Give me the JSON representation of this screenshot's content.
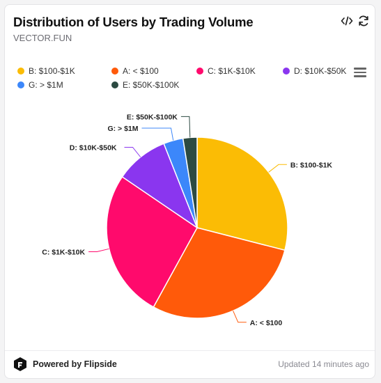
{
  "header": {
    "title": "Distribution of Users by Trading Volume",
    "subtitle": "VECTOR.FUN",
    "embed_icon": "code-icon",
    "refresh_icon": "refresh-icon"
  },
  "legend_menu_icon": "hamburger-menu-icon",
  "footer": {
    "brand_icon": "flipside-logo",
    "powered_by": "Powered by Flipside",
    "updated": "Updated 14 minutes ago"
  },
  "chart_data": {
    "type": "pie",
    "title": "Distribution of Users by Trading Volume",
    "legend_position": "top-left",
    "series": [
      {
        "name": "B: $100-$1K",
        "value": 29.0,
        "color": "#fbbc05"
      },
      {
        "name": "A: < $100",
        "value": 29.0,
        "color": "#ff5a0a"
      },
      {
        "name": "C: $1K-$10K",
        "value": 26.5,
        "color": "#ff0a6c"
      },
      {
        "name": "D: $10K-$50K",
        "value": 9.5,
        "color": "#8a36ef"
      },
      {
        "name": "G: > $1M",
        "value": 3.5,
        "color": "#3c87fa"
      },
      {
        "name": "E: $50K-$100K",
        "value": 2.5,
        "color": "#2c4a42"
      }
    ]
  }
}
